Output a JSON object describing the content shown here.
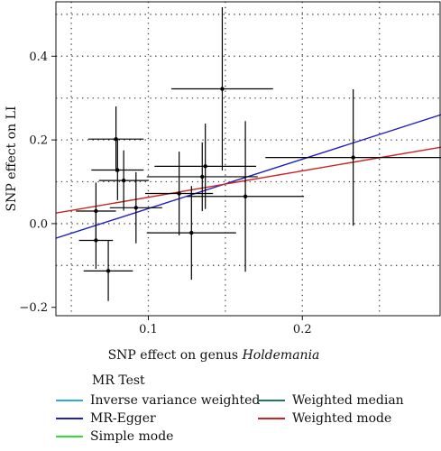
{
  "chart_data": {
    "type": "scatter",
    "xlabel_prefix": "SNP effect on genus ",
    "xlabel_italic": "Holdemania",
    "ylabel": "SNP effect on LI",
    "xlim": [
      0.04,
      0.29
    ],
    "ylim": [
      -0.22,
      0.53
    ],
    "x_ticks": [
      0.1,
      0.2
    ],
    "y_ticks": [
      -0.2,
      0.0,
      0.2,
      0.4
    ],
    "x_tick_labels": [
      "0.1",
      "0.2"
    ],
    "y_tick_labels": [
      "−0.2",
      "0.0",
      "0.2",
      "0.4"
    ],
    "x_grid": [
      0.05,
      0.1,
      0.15,
      0.2,
      0.25
    ],
    "y_grid": [
      -0.1,
      0.0,
      0.1,
      0.2,
      0.3,
      0.4,
      0.5
    ],
    "grid": true,
    "points": [
      {
        "x": 0.066,
        "y": 0.03,
        "xerr": 0.013,
        "yerr": 0.068
      },
      {
        "x": 0.066,
        "y": -0.04,
        "xerr": 0.011,
        "yerr": 0.068
      },
      {
        "x": 0.074,
        "y": -0.113,
        "xerr": 0.016,
        "yerr": 0.072
      },
      {
        "x": 0.079,
        "y": 0.202,
        "xerr": 0.018,
        "yerr": 0.078
      },
      {
        "x": 0.08,
        "y": 0.128,
        "xerr": 0.017,
        "yerr": 0.072
      },
      {
        "x": 0.084,
        "y": 0.103,
        "xerr": 0.016,
        "yerr": 0.072
      },
      {
        "x": 0.092,
        "y": 0.038,
        "xerr": 0.017,
        "yerr": 0.085
      },
      {
        "x": 0.128,
        "y": -0.022,
        "xerr": 0.029,
        "yerr": 0.112
      },
      {
        "x": 0.12,
        "y": 0.072,
        "xerr": 0.022,
        "yerr": 0.1
      },
      {
        "x": 0.135,
        "y": 0.112,
        "xerr": 0.036,
        "yerr": 0.082
      },
      {
        "x": 0.137,
        "y": 0.137,
        "xerr": 0.033,
        "yerr": 0.102
      },
      {
        "x": 0.148,
        "y": 0.322,
        "xerr": 0.033,
        "yerr": 0.195
      },
      {
        "x": 0.163,
        "y": 0.065,
        "xerr": 0.038,
        "yerr": 0.18
      },
      {
        "x": 0.233,
        "y": 0.158,
        "xerr": 0.057,
        "yerr": 0.163
      }
    ],
    "lines": [
      {
        "name": "MR-Egger",
        "color": "#1f1fbf",
        "slope": 1.18,
        "intercept": -0.082
      },
      {
        "name": "Weighted mode",
        "color": "#cc2222",
        "slope": 0.63,
        "intercept": 0.0
      }
    ],
    "legend": {
      "title": "MR Test",
      "placement": "bottom",
      "items": [
        {
          "name": "Inverse variance weighted",
          "color": "#33aadd",
          "col": 0,
          "row": 0
        },
        {
          "name": "MR-Egger",
          "color": "#1f1fbf",
          "col": 0,
          "row": 1
        },
        {
          "name": "Simple mode",
          "color": "#33dd33",
          "col": 0,
          "row": 2
        },
        {
          "name": "Weighted median",
          "color": "#1f7a5a",
          "col": 1,
          "row": 0
        },
        {
          "name": "Weighted mode",
          "color": "#cc2222",
          "col": 1,
          "row": 1
        }
      ]
    }
  }
}
